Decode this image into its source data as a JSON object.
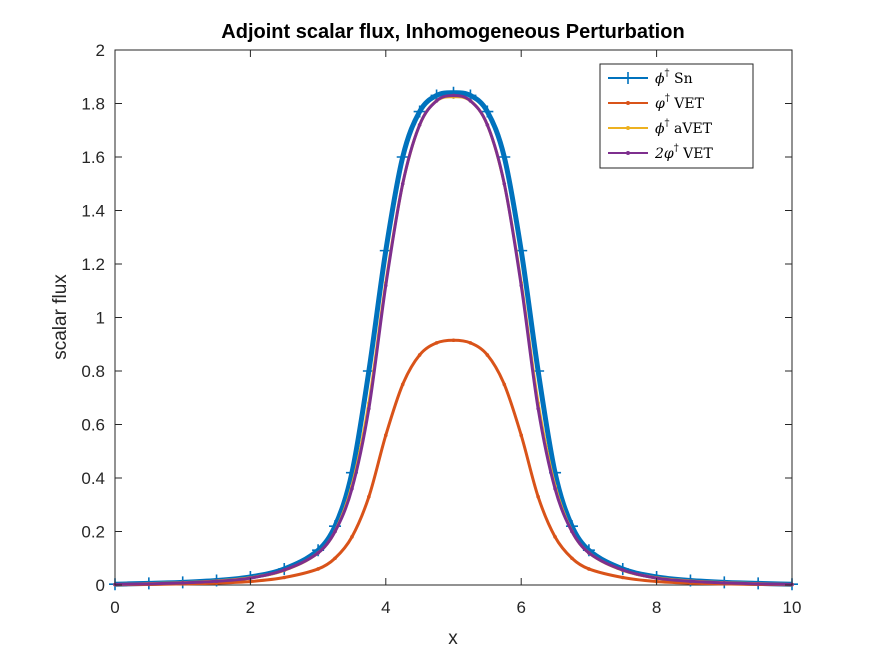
{
  "chart_data": {
    "type": "line",
    "title": "Adjoint scalar flux, Inhomogeneous Perturbation",
    "xlabel": "x",
    "ylabel": "scalar flux",
    "xlim": [
      0,
      10
    ],
    "ylim": [
      0,
      2
    ],
    "xticks": [
      0,
      2,
      4,
      6,
      8,
      10
    ],
    "xtick_labels": [
      "0",
      "2",
      "4",
      "6",
      "8",
      "10"
    ],
    "yticks": [
      0,
      0.2,
      0.4,
      0.6,
      0.8,
      1,
      1.2,
      1.4,
      1.6,
      1.8,
      2
    ],
    "ytick_labels": [
      "0",
      "0.2",
      "0.4",
      "0.6",
      "0.8",
      "1",
      "1.2",
      "1.4",
      "1.6",
      "1.8",
      "2"
    ],
    "grid": false,
    "legend_position": "top-right",
    "x": [
      0,
      0.5,
      1,
      1.5,
      2,
      2.5,
      3,
      3.25,
      3.5,
      3.75,
      4,
      4.25,
      4.5,
      4.75,
      5,
      5.25,
      5.5,
      5.75,
      6,
      6.25,
      6.5,
      6.75,
      7,
      7.5,
      8,
      8.5,
      9,
      9.5,
      10
    ],
    "series": [
      {
        "name": "ϕ† Sn",
        "legend_base": "ϕ",
        "legend_rest": " Sn",
        "color": "#0072BD",
        "marker": "plus",
        "values": [
          0.003,
          0.006,
          0.01,
          0.017,
          0.03,
          0.06,
          0.13,
          0.22,
          0.42,
          0.8,
          1.25,
          1.6,
          1.77,
          1.83,
          1.84,
          1.83,
          1.77,
          1.6,
          1.25,
          0.8,
          0.42,
          0.22,
          0.13,
          0.06,
          0.03,
          0.017,
          0.01,
          0.006,
          0.003
        ]
      },
      {
        "name": "φ† VET",
        "legend_base": "φ",
        "legend_rest": " VET",
        "color": "#D95319",
        "marker": "dot",
        "values": [
          0.001,
          0.002,
          0.004,
          0.007,
          0.013,
          0.028,
          0.06,
          0.1,
          0.18,
          0.33,
          0.56,
          0.75,
          0.86,
          0.905,
          0.915,
          0.905,
          0.86,
          0.75,
          0.56,
          0.33,
          0.18,
          0.1,
          0.06,
          0.028,
          0.013,
          0.007,
          0.004,
          0.002,
          0.001
        ]
      },
      {
        "name": "ϕ† aVET",
        "legend_base": "ϕ",
        "legend_rest": " aVET",
        "color": "#EDB120",
        "marker": "dot",
        "values": [
          0.002,
          0.005,
          0.009,
          0.015,
          0.027,
          0.055,
          0.12,
          0.2,
          0.37,
          0.68,
          1.13,
          1.5,
          1.72,
          1.81,
          1.825,
          1.81,
          1.72,
          1.5,
          1.13,
          0.68,
          0.37,
          0.2,
          0.12,
          0.055,
          0.027,
          0.015,
          0.009,
          0.005,
          0.002
        ]
      },
      {
        "name": "2φ† VET",
        "legend_base": "2φ",
        "legend_rest": " VET",
        "color": "#7E2F8E",
        "marker": "dot",
        "values": [
          0.002,
          0.004,
          0.008,
          0.014,
          0.026,
          0.056,
          0.12,
          0.2,
          0.36,
          0.66,
          1.12,
          1.5,
          1.72,
          1.81,
          1.83,
          1.81,
          1.72,
          1.5,
          1.12,
          0.66,
          0.36,
          0.2,
          0.12,
          0.056,
          0.026,
          0.014,
          0.008,
          0.004,
          0.002
        ]
      }
    ]
  }
}
